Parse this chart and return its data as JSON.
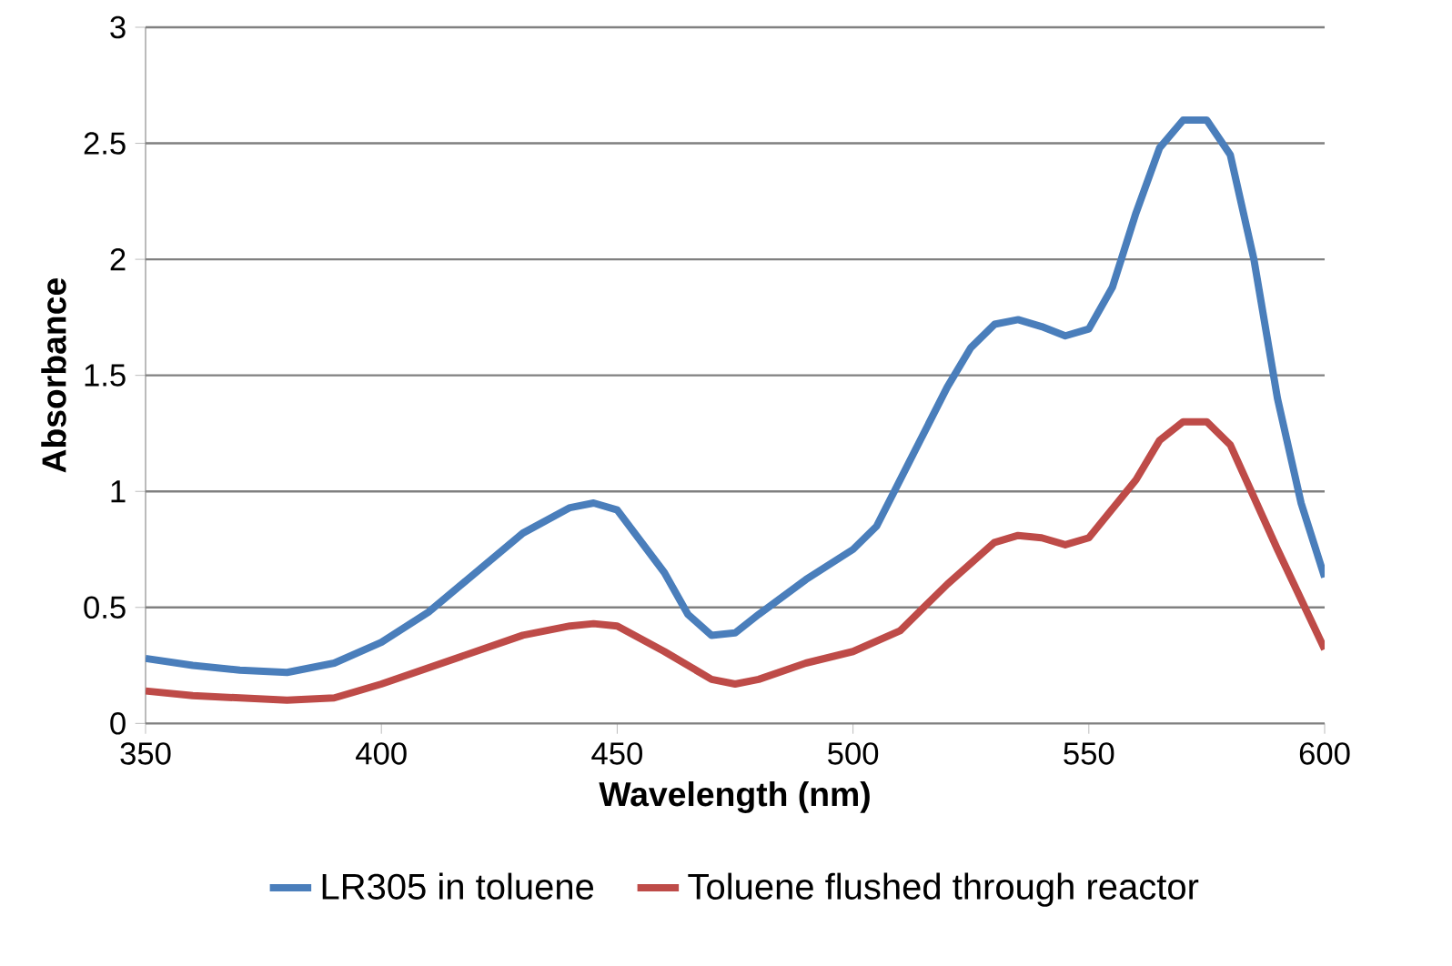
{
  "chart_data": {
    "type": "line",
    "xlabel": "Wavelength (nm)",
    "ylabel": "Absorbance",
    "xlim": [
      350,
      600
    ],
    "xticks": [
      350,
      400,
      450,
      500,
      550,
      600
    ],
    "ylim": [
      0,
      3
    ],
    "yticks": [
      0,
      0.5,
      1,
      1.5,
      2,
      2.5,
      3
    ],
    "grid": "y",
    "legend": "bottom",
    "marker": "none",
    "line_style": "solid",
    "series": [
      {
        "name": "LR305 in toluene",
        "color": "#4a7ebb",
        "x": [
          350,
          360,
          370,
          380,
          390,
          400,
          410,
          420,
          430,
          440,
          445,
          450,
          460,
          465,
          470,
          475,
          480,
          490,
          500,
          505,
          510,
          520,
          525,
          530,
          535,
          540,
          545,
          550,
          555,
          560,
          565,
          570,
          575,
          580,
          585,
          590,
          595,
          600
        ],
        "values": [
          0.28,
          0.25,
          0.23,
          0.22,
          0.26,
          0.35,
          0.48,
          0.65,
          0.82,
          0.93,
          0.95,
          0.92,
          0.65,
          0.47,
          0.38,
          0.39,
          0.47,
          0.62,
          0.75,
          0.85,
          1.05,
          1.45,
          1.62,
          1.72,
          1.74,
          1.71,
          1.67,
          1.7,
          1.88,
          2.2,
          2.48,
          2.6,
          2.6,
          2.45,
          2.0,
          1.4,
          0.95,
          0.63
        ]
      },
      {
        "name": "Toluene flushed through reactor",
        "color": "#be4b48",
        "x": [
          350,
          360,
          370,
          380,
          390,
          400,
          410,
          420,
          430,
          440,
          445,
          450,
          460,
          470,
          475,
          480,
          490,
          500,
          510,
          520,
          530,
          535,
          540,
          545,
          550,
          560,
          565,
          570,
          575,
          580,
          590,
          600
        ],
        "values": [
          0.14,
          0.12,
          0.11,
          0.1,
          0.11,
          0.17,
          0.24,
          0.31,
          0.38,
          0.42,
          0.43,
          0.42,
          0.31,
          0.19,
          0.17,
          0.19,
          0.26,
          0.31,
          0.4,
          0.6,
          0.78,
          0.81,
          0.8,
          0.77,
          0.8,
          1.05,
          1.22,
          1.3,
          1.3,
          1.2,
          0.75,
          0.32
        ]
      }
    ]
  }
}
